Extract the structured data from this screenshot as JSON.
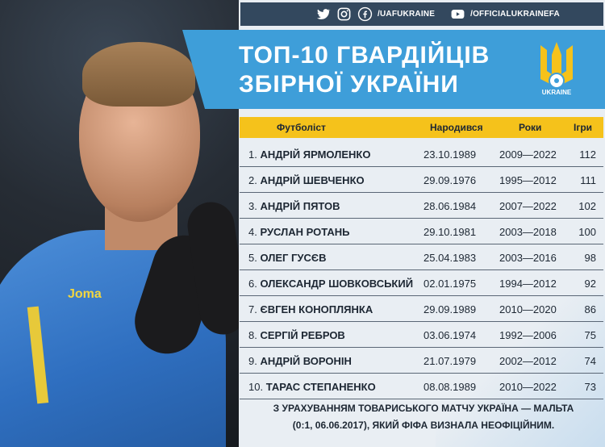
{
  "social": {
    "handle1": "/UAFUKRAINE",
    "handle2": "/OFFICIALUKRAINEFA"
  },
  "photo": {
    "shirt_brand": "Joma"
  },
  "title": {
    "line1": "ТОП-10 ГВАРДІЙЦІВ",
    "line2": "ЗБІРНОЇ УКРАЇНИ"
  },
  "logo": {
    "text": "UKRAINE"
  },
  "table": {
    "headers": [
      "Футболіст",
      "Народився",
      "Роки",
      "Ігри"
    ],
    "rows": [
      {
        "num": "1.",
        "name": "АНДРІЙ ЯРМОЛЕНКО",
        "born": "23.10.1989",
        "years": "2009—2022",
        "games": "112"
      },
      {
        "num": "2.",
        "name": "АНДРІЙ ШЕВЧЕНКО",
        "born": "29.09.1976",
        "years": "1995—2012",
        "games": "111"
      },
      {
        "num": "3.",
        "name": "АНДРІЙ ПЯТОВ",
        "born": "28.06.1984",
        "years": "2007—2022",
        "games": "102"
      },
      {
        "num": "4.",
        "name": "РУСЛАН РОТАНЬ",
        "born": "29.10.1981",
        "years": "2003—2018",
        "games": "100"
      },
      {
        "num": "5.",
        "name": "ОЛЕГ ГУСЄВ",
        "born": "25.04.1983",
        "years": "2003—2016",
        "games": "98"
      },
      {
        "num": "6.",
        "name": "ОЛЕКСАНДР ШОВКОВСЬКИЙ",
        "born": "02.01.1975",
        "years": "1994—2012",
        "games": "92"
      },
      {
        "num": "7.",
        "name": "ЄВГЕН КОНОПЛЯНКА",
        "born": "29.09.1989",
        "years": "2010—2020",
        "games": "86"
      },
      {
        "num": "8.",
        "name": "СЕРГІЙ РЕБРОВ",
        "born": "03.06.1974",
        "years": "1992—2006",
        "games": "75"
      },
      {
        "num": "9.",
        "name": "АНДРІЙ ВОРОНІН",
        "born": "21.07.1979",
        "years": "2002—2012",
        "games": "74"
      },
      {
        "num": "10.",
        "name": "ТАРАС СТЕПАНЕНКО",
        "born": "08.08.1989",
        "years": "2010—2022",
        "games": "73"
      }
    ]
  },
  "footnote": {
    "line1": "З УРАХУВАННЯМ ТОВАРИСЬКОГО МАТЧУ УКРАЇНА — МАЛЬТА",
    "line2": "(0:1, 06.06.2017), ЯКИЙ ФІФА ВИЗНАЛА НЕОФІЦІЙНИМ."
  },
  "colors": {
    "accent_blue": "#3e9ed9",
    "header_yellow": "#f5c21b",
    "bar_dark": "#33485e"
  }
}
